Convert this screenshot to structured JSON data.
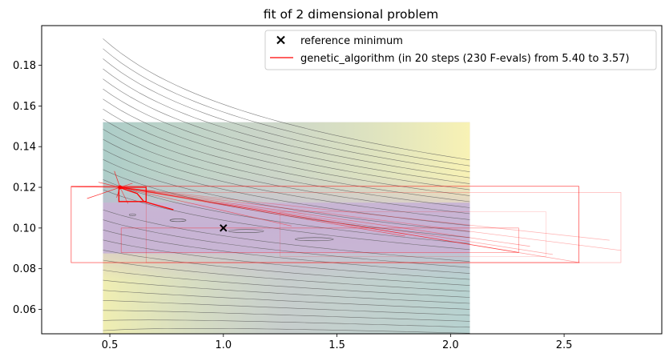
{
  "chart_data": {
    "type": "line",
    "title": "fit of 2 dimensional problem",
    "xlabel": "",
    "ylabel": "",
    "xlim": [
      0.2,
      2.93
    ],
    "ylim": [
      0.048,
      0.1995
    ],
    "xticks": [
      0.5,
      1.0,
      1.5,
      2.0,
      2.5
    ],
    "xtick_labels": [
      "0.5",
      "1.0",
      "1.5",
      "2.0",
      "2.5"
    ],
    "yticks": [
      0.06,
      0.08,
      0.1,
      0.12,
      0.14,
      0.16,
      0.18
    ],
    "ytick_labels": [
      "0.06",
      "0.08",
      "0.10",
      "0.12",
      "0.14",
      "0.16",
      "0.18"
    ],
    "grid": false,
    "legend_position": "top-right",
    "contour_region": {
      "x": [
        0.47,
        2.085
      ],
      "y": [
        0.048,
        0.152
      ]
    },
    "colors": {
      "path": "#ff0000",
      "reference": "#000000",
      "contour_line": "#555555"
    },
    "series": [
      {
        "name": "reference minimum",
        "kind": "scatter",
        "marker": "x",
        "x": [
          1.0
        ],
        "y": [
          0.1
        ]
      },
      {
        "name": "genetic_algorithm (in 20 steps (230 F-evals) from 5.40 to 3.57)",
        "kind": "path",
        "x": [
          0.54,
          0.54,
          0.66,
          0.66,
          0.54,
          0.62,
          0.65,
          0.78
        ],
        "y": [
          0.12,
          0.113,
          0.113,
          0.12,
          0.12,
          0.117,
          0.113,
          0.109
        ],
        "best": [
          0.545,
          0.12
        ]
      }
    ]
  }
}
